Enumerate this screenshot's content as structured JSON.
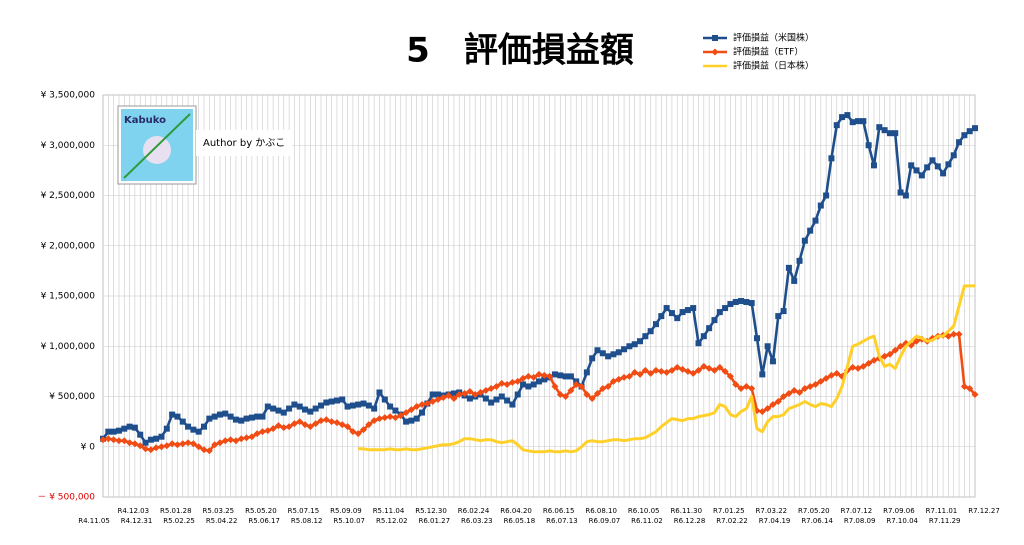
{
  "chart_data": {
    "type": "line",
    "title": "5　評価損益額",
    "author": "Author by かぶこ",
    "logo_text": "Kabuko",
    "categories": [
      "R4.11.05",
      null,
      null,
      null,
      "R4.12.03",
      null,
      null,
      null,
      "R4.12.31",
      null,
      null,
      null,
      "R5.01.28",
      null,
      null,
      null,
      "R5.02.25",
      null,
      null,
      null,
      "R5.03.25",
      null,
      null,
      null,
      "R5.04.22",
      null,
      null,
      null,
      "R5.05.20",
      null,
      null,
      null,
      "R5.06.17",
      null,
      null,
      null,
      "R5.07.15",
      null,
      null,
      null,
      "R5.08.12",
      null,
      null,
      null,
      "R5.09.09",
      null,
      null,
      null,
      "R5.10.07",
      null,
      null,
      null,
      "R5.11.04",
      null,
      null,
      null,
      "R5.12.02",
      null,
      null,
      null,
      "R5.12.30",
      null,
      null,
      null,
      "R6.01.27",
      null,
      null,
      null,
      "R6.02.24",
      null,
      null,
      null,
      "R6.03.23",
      null,
      null,
      null,
      "R6.04.20",
      null,
      null,
      null,
      "R6.05.18",
      null,
      null,
      null,
      "R6.06.15",
      null,
      null,
      null,
      "R6.07.13",
      null,
      null,
      null,
      "R6.08.10",
      null,
      null,
      null,
      "R6.09.07",
      null,
      null,
      null,
      "R6.10.05",
      null,
      null,
      null,
      "R6.11.02",
      null,
      null,
      null,
      "R6.11.30",
      null,
      null,
      null,
      "R6.12.28",
      null,
      null,
      null,
      "R7.01.25",
      null,
      null,
      null,
      "R7.02.22",
      null,
      null,
      null,
      "R7.03.22",
      null,
      null,
      null,
      "R7.04.19",
      null,
      null,
      null,
      "R7.05.20",
      null,
      null,
      null,
      "R7.06.14",
      null,
      null,
      null,
      "R7.07.12",
      null,
      null,
      null,
      "R7.08.09",
      null,
      null,
      null,
      "R7.09.06",
      null,
      null,
      null,
      "R7.10.04",
      null,
      null,
      null,
      "R7.11.01",
      null,
      null,
      null,
      "R7.11.29",
      null,
      null,
      null,
      "R7.12.27"
    ],
    "series": [
      {
        "name": "評価損益（米国株）",
        "color": "#1f4e8c",
        "marker": "square",
        "values": [
          80000,
          150000,
          150000,
          160000,
          180000,
          200000,
          190000,
          120000,
          40000,
          70000,
          80000,
          100000,
          180000,
          320000,
          300000,
          250000,
          200000,
          170000,
          150000,
          200000,
          280000,
          300000,
          320000,
          330000,
          300000,
          270000,
          260000,
          280000,
          290000,
          300000,
          300000,
          400000,
          380000,
          360000,
          340000,
          380000,
          420000,
          400000,
          370000,
          350000,
          380000,
          410000,
          440000,
          450000,
          460000,
          470000,
          400000,
          410000,
          420000,
          430000,
          410000,
          380000,
          540000,
          470000,
          400000,
          360000,
          320000,
          250000,
          260000,
          280000,
          340000,
          430000,
          520000,
          520000,
          510000,
          520000,
          530000,
          540000,
          510000,
          480000,
          500000,
          520000,
          480000,
          440000,
          470000,
          500000,
          460000,
          420000,
          520000,
          620000,
          600000,
          620000,
          650000,
          670000,
          690000,
          720000,
          710000,
          700000,
          700000,
          650000,
          600000,
          740000,
          880000,
          960000,
          930000,
          900000,
          920000,
          940000,
          970000,
          1000000,
          1020000,
          1050000,
          1100000,
          1150000,
          1220000,
          1300000,
          1380000,
          1330000,
          1280000,
          1340000,
          1360000,
          1380000,
          1030000,
          1100000,
          1180000,
          1260000,
          1340000,
          1380000,
          1420000,
          1440000,
          1450000,
          1440000,
          1430000,
          1080000,
          720000,
          1000000,
          850000,
          1300000,
          1350000,
          1780000,
          1650000,
          1850000,
          2050000,
          2150000,
          2250000,
          2400000,
          2500000,
          2870000,
          3200000,
          3280000,
          3300000,
          3230000,
          3240000,
          3240000,
          3000000,
          2800000,
          3180000,
          3150000,
          3120000,
          3120000,
          2530000,
          2500000,
          2800000,
          2750000,
          2700000,
          2780000,
          2850000,
          2790000,
          2720000,
          2810000,
          2900000,
          3030000,
          3100000,
          3140000,
          3170000
        ]
      },
      {
        "name": "評価損益（ETF）",
        "color": "#f04c14",
        "marker": "diamond",
        "values": [
          70000,
          80000,
          70000,
          60000,
          60000,
          40000,
          30000,
          10000,
          -20000,
          -30000,
          -10000,
          0,
          10000,
          30000,
          20000,
          30000,
          40000,
          30000,
          0,
          -30000,
          -40000,
          20000,
          40000,
          60000,
          70000,
          60000,
          80000,
          90000,
          100000,
          130000,
          150000,
          160000,
          180000,
          210000,
          190000,
          200000,
          230000,
          250000,
          220000,
          200000,
          230000,
          260000,
          270000,
          250000,
          240000,
          220000,
          200000,
          150000,
          130000,
          170000,
          220000,
          260000,
          280000,
          290000,
          300000,
          290000,
          310000,
          340000,
          370000,
          400000,
          420000,
          430000,
          450000,
          470000,
          490000,
          510000,
          480000,
          520000,
          530000,
          550000,
          520000,
          540000,
          560000,
          580000,
          600000,
          630000,
          620000,
          640000,
          650000,
          680000,
          700000,
          690000,
          720000,
          710000,
          700000,
          600000,
          520000,
          500000,
          560000,
          620000,
          600000,
          520000,
          480000,
          530000,
          580000,
          600000,
          650000,
          670000,
          690000,
          700000,
          740000,
          720000,
          760000,
          730000,
          760000,
          750000,
          740000,
          760000,
          790000,
          770000,
          750000,
          730000,
          760000,
          800000,
          780000,
          760000,
          790000,
          750000,
          700000,
          620000,
          580000,
          600000,
          580000,
          360000,
          350000,
          380000,
          420000,
          450000,
          500000,
          530000,
          560000,
          540000,
          580000,
          600000,
          620000,
          650000,
          680000,
          710000,
          730000,
          700000,
          760000,
          790000,
          780000,
          800000,
          830000,
          860000,
          880000,
          900000,
          920000,
          960000,
          1000000,
          1030000,
          1010000,
          1050000,
          1070000,
          1050000,
          1080000,
          1100000,
          1110000,
          1100000,
          1120000,
          1120000,
          600000,
          580000,
          520000
        ]
      },
      {
        "name": "評価損益（日本株）",
        "color": "#ffd028",
        "marker": "none",
        "values": [
          null,
          null,
          null,
          null,
          null,
          null,
          null,
          null,
          null,
          null,
          null,
          null,
          null,
          null,
          null,
          null,
          null,
          null,
          null,
          null,
          null,
          null,
          null,
          null,
          null,
          null,
          null,
          null,
          null,
          null,
          null,
          null,
          null,
          null,
          null,
          null,
          null,
          null,
          null,
          null,
          null,
          null,
          null,
          null,
          null,
          null,
          null,
          null,
          -20000,
          -20000,
          -30000,
          -30000,
          -30000,
          -30000,
          -20000,
          -30000,
          -30000,
          -20000,
          -30000,
          -30000,
          -20000,
          -10000,
          0,
          10000,
          20000,
          20000,
          30000,
          50000,
          80000,
          80000,
          70000,
          60000,
          70000,
          70000,
          50000,
          40000,
          50000,
          60000,
          20000,
          -30000,
          -40000,
          -50000,
          -50000,
          -50000,
          -40000,
          -50000,
          -50000,
          -40000,
          -50000,
          -40000,
          0,
          50000,
          60000,
          50000,
          50000,
          60000,
          70000,
          70000,
          60000,
          70000,
          80000,
          80000,
          90000,
          120000,
          150000,
          200000,
          240000,
          280000,
          270000,
          260000,
          280000,
          280000,
          300000,
          310000,
          320000,
          340000,
          420000,
          400000,
          320000,
          300000,
          350000,
          380000,
          500000,
          180000,
          150000,
          250000,
          300000,
          300000,
          320000,
          380000,
          400000,
          420000,
          450000,
          420000,
          400000,
          430000,
          420000,
          400000,
          480000,
          600000,
          800000,
          1000000,
          1020000,
          1050000,
          1080000,
          1100000,
          900000,
          800000,
          820000,
          780000,
          900000,
          1000000,
          1050000,
          1100000,
          1080000,
          1050000,
          1060000,
          1100000,
          1100000,
          1150000,
          1200000,
          1400000,
          1600000,
          1600000,
          1600000
        ]
      }
    ],
    "ylim": [
      -500000,
      3500000
    ],
    "yticks": [
      {
        "value": -500000,
        "label": "－ ¥ 500,000"
      },
      {
        "value": 0,
        "label": "¥ 0"
      },
      {
        "value": 500000,
        "label": "¥ 500,000"
      },
      {
        "value": 1000000,
        "label": "¥ 1,000,000"
      },
      {
        "value": 1500000,
        "label": "¥ 1,500,000"
      },
      {
        "value": 2000000,
        "label": "¥ 2,000,000"
      },
      {
        "value": 2500000,
        "label": "¥ 2,500,000"
      },
      {
        "value": 3000000,
        "label": "¥ 3,000,000"
      },
      {
        "value": 3500000,
        "label": "¥ 3,500,000"
      }
    ],
    "negative_tick_color": "#e00000",
    "grid": true
  }
}
